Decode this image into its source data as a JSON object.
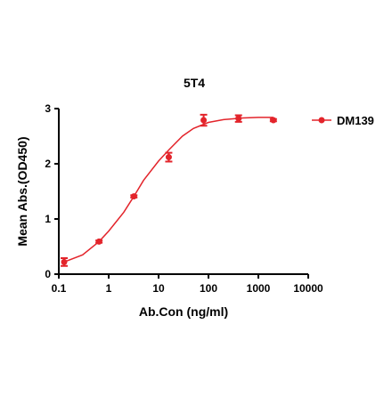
{
  "chart_data": {
    "type": "scatter",
    "title": "5T4",
    "x_label": "Ab.Con (ng/ml)",
    "y_label": "Mean Abs.(OD450)",
    "x_scale": "log",
    "xlim": [
      0.1,
      10000
    ],
    "xticks": [
      0.1,
      1,
      10,
      100,
      1000,
      10000
    ],
    "ylim": [
      0,
      3
    ],
    "yticks": [
      0,
      1,
      2,
      3
    ],
    "legend": "right",
    "series": [
      {
        "name": "DM139",
        "color": "#e3242b",
        "x": [
          0.128,
          0.64,
          3.2,
          16,
          80,
          400,
          2000
        ],
        "values": [
          0.22,
          0.59,
          1.41,
          2.12,
          2.79,
          2.82,
          2.79
        ],
        "errors": [
          0.07,
          0.02,
          0.02,
          0.08,
          0.1,
          0.06,
          0.02
        ],
        "fit": {
          "x": [
            0.128,
            0.3,
            0.64,
            1,
            2,
            3.2,
            5,
            10,
            16,
            30,
            50,
            100,
            200,
            500,
            1000,
            2000
          ],
          "values": [
            0.22,
            0.35,
            0.59,
            0.78,
            1.12,
            1.41,
            1.7,
            2.05,
            2.25,
            2.5,
            2.64,
            2.75,
            2.8,
            2.83,
            2.84,
            2.84
          ]
        }
      }
    ]
  }
}
